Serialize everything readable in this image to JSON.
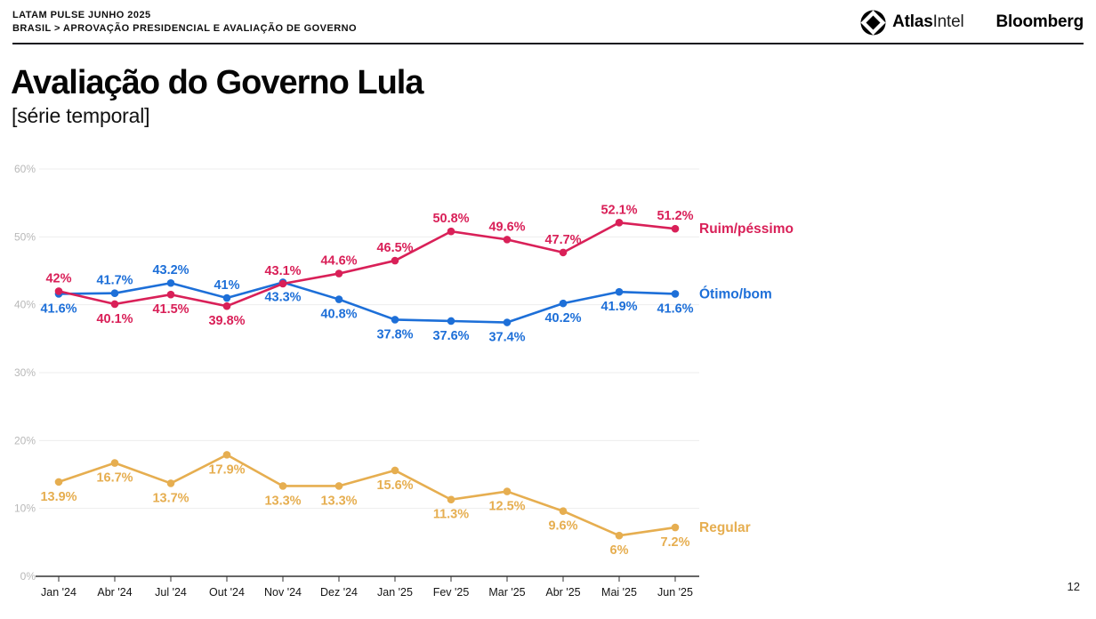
{
  "header": {
    "kicker_line1": "LATAM PULSE JUNHO 2025",
    "kicker_line2": "BRASIL > APROVAÇÃO PRESIDENCIAL E AVALIAÇÃO DE GOVERNO"
  },
  "brands": {
    "atlas_bold": "Atlas",
    "atlas_regular": "Intel",
    "bloomberg": "Bloomberg"
  },
  "title": {
    "main": "Avaliação do Governo Lula",
    "sub": "[série temporal]"
  },
  "footer": {
    "page_number": "12"
  },
  "chart_data": {
    "type": "line",
    "title": "Avaliação do Governo Lula [série temporal]",
    "categories": [
      "Jan '24",
      "Abr '24",
      "Jul '24",
      "Out '24",
      "Nov '24",
      "Dez '24",
      "Jan '25",
      "Fev '25",
      "Mar '25",
      "Abr '25",
      "Mai '25",
      "Jun '25"
    ],
    "series": [
      {
        "name": "Ruim/péssimo",
        "color": "#d92058",
        "values": [
          42,
          40.1,
          41.5,
          39.8,
          43.1,
          44.6,
          46.5,
          50.8,
          49.6,
          47.7,
          52.1,
          51.2
        ],
        "labels": [
          "42%",
          "40.1%",
          "41.5%",
          "39.8%",
          "43.1%",
          "44.6%",
          "46.5%",
          "50.8%",
          "49.6%",
          "47.7%",
          "52.1%",
          "51.2%"
        ],
        "label_positions": [
          "above",
          "below",
          "below",
          "below",
          "above",
          "above",
          "above",
          "above",
          "above",
          "above",
          "above",
          "above"
        ]
      },
      {
        "name": "Ótimo/bom",
        "color": "#1d6fd8",
        "values": [
          41.6,
          41.7,
          43.2,
          41,
          43.3,
          40.8,
          37.8,
          37.6,
          37.4,
          40.2,
          41.9,
          41.6
        ],
        "labels": [
          "41.6%",
          "41.7%",
          "43.2%",
          "41%",
          "43.3%",
          "40.8%",
          "37.8%",
          "37.6%",
          "37.4%",
          "40.2%",
          "41.9%",
          "41.6%"
        ],
        "label_positions": [
          "below",
          "above",
          "above",
          "above",
          "below",
          "below",
          "below",
          "below",
          "below",
          "below",
          "below",
          "below"
        ]
      },
      {
        "name": "Regular",
        "color": "#e6ae50",
        "values": [
          13.9,
          16.7,
          13.7,
          17.9,
          13.3,
          13.3,
          15.6,
          11.3,
          12.5,
          9.6,
          6,
          7.2
        ],
        "labels": [
          "13.9%",
          "16.7%",
          "13.7%",
          "17.9%",
          "13.3%",
          "13.3%",
          "15.6%",
          "11.3%",
          "12.5%",
          "9.6%",
          "6%",
          "7.2%"
        ],
        "label_positions": [
          "below",
          "below",
          "below",
          "below",
          "below",
          "below",
          "below",
          "below",
          "below",
          "below",
          "below",
          "below"
        ]
      }
    ],
    "ylim": [
      0,
      60
    ],
    "ytick_values": [
      0,
      10,
      20,
      30,
      40,
      50,
      60
    ],
    "ytick_labels": [
      "0%",
      "10%",
      "20%",
      "30%",
      "40%",
      "50%",
      "60%"
    ],
    "grid": true,
    "legend_position": "right-of-last-point",
    "colors": {
      "grid_line": "#ededed",
      "axis_line": "#333333",
      "y_tick_label": "#b8b8b8",
      "x_tick_label": "#141414"
    }
  }
}
